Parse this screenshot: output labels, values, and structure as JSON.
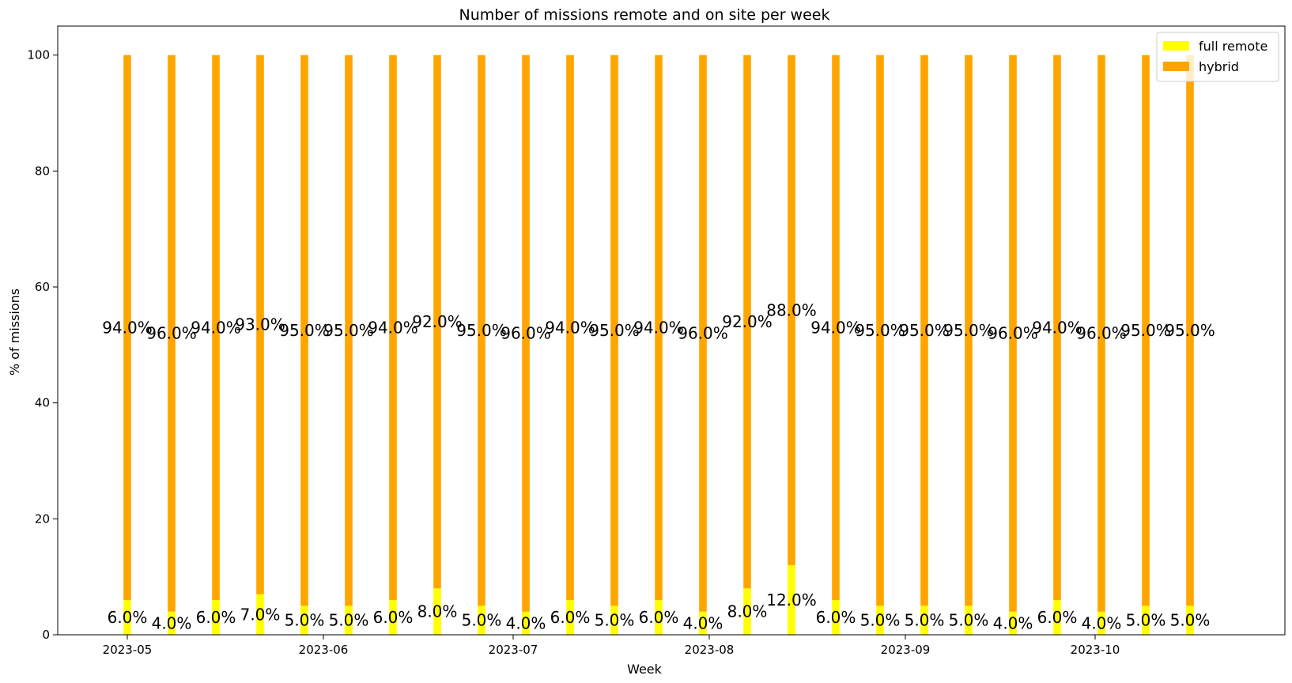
{
  "chart_data": {
    "type": "bar",
    "stacked": true,
    "title": "Number of missions remote and on site per week",
    "xlabel": "Week",
    "ylabel": "% of missions",
    "ylim": [
      0,
      105
    ],
    "yticks": [
      0,
      20,
      40,
      60,
      80,
      100
    ],
    "xticks": [
      {
        "label": "2023-05",
        "date": "2023-05-01"
      },
      {
        "label": "2023-06",
        "date": "2023-06-01"
      },
      {
        "label": "2023-07",
        "date": "2023-07-01"
      },
      {
        "label": "2023-08",
        "date": "2023-08-01"
      },
      {
        "label": "2023-09",
        "date": "2023-09-01"
      },
      {
        "label": "2023-10",
        "date": "2023-10-01"
      }
    ],
    "xlim": [
      "2023-04-20",
      "2023-10-31"
    ],
    "grid": false,
    "legend_position": "top-right",
    "x": [
      "2023-05-01",
      "2023-05-08",
      "2023-05-15",
      "2023-05-22",
      "2023-05-29",
      "2023-06-05",
      "2023-06-12",
      "2023-06-19",
      "2023-06-26",
      "2023-07-03",
      "2023-07-10",
      "2023-07-17",
      "2023-07-24",
      "2023-07-31",
      "2023-08-07",
      "2023-08-14",
      "2023-08-21",
      "2023-08-28",
      "2023-09-04",
      "2023-09-11",
      "2023-09-18",
      "2023-09-25",
      "2023-10-02",
      "2023-10-09",
      "2023-10-16"
    ],
    "series": [
      {
        "name": "full remote",
        "color": "#ffff00",
        "values": [
          6,
          4,
          6,
          7,
          5,
          5,
          6,
          8,
          5,
          4,
          6,
          5,
          6,
          4,
          8,
          12,
          6,
          5,
          5,
          5,
          4,
          6,
          4,
          5,
          5
        ],
        "labels": [
          "6.0%",
          "4.0%",
          "6.0%",
          "7.0%",
          "5.0%",
          "5.0%",
          "6.0%",
          "8.0%",
          "5.0%",
          "4.0%",
          "6.0%",
          "5.0%",
          "6.0%",
          "4.0%",
          "8.0%",
          "12.0%",
          "6.0%",
          "5.0%",
          "5.0%",
          "5.0%",
          "4.0%",
          "6.0%",
          "4.0%",
          "5.0%",
          "5.0%"
        ]
      },
      {
        "name": "hybrid",
        "color": "#ffa500",
        "values": [
          94,
          96,
          94,
          93,
          95,
          95,
          94,
          92,
          95,
          96,
          94,
          95,
          94,
          96,
          92,
          88,
          94,
          95,
          95,
          95,
          96,
          94,
          96,
          95,
          95
        ],
        "labels": [
          "94.0%",
          "96.0%",
          "94.0%",
          "93.0%",
          "95.0%",
          "95.0%",
          "94.0%",
          "92.0%",
          "95.0%",
          "96.0%",
          "94.0%",
          "95.0%",
          "94.0%",
          "96.0%",
          "92.0%",
          "88.0%",
          "94.0%",
          "95.0%",
          "95.0%",
          "95.0%",
          "96.0%",
          "94.0%",
          "96.0%",
          "95.0%",
          "95.0%"
        ]
      }
    ]
  }
}
